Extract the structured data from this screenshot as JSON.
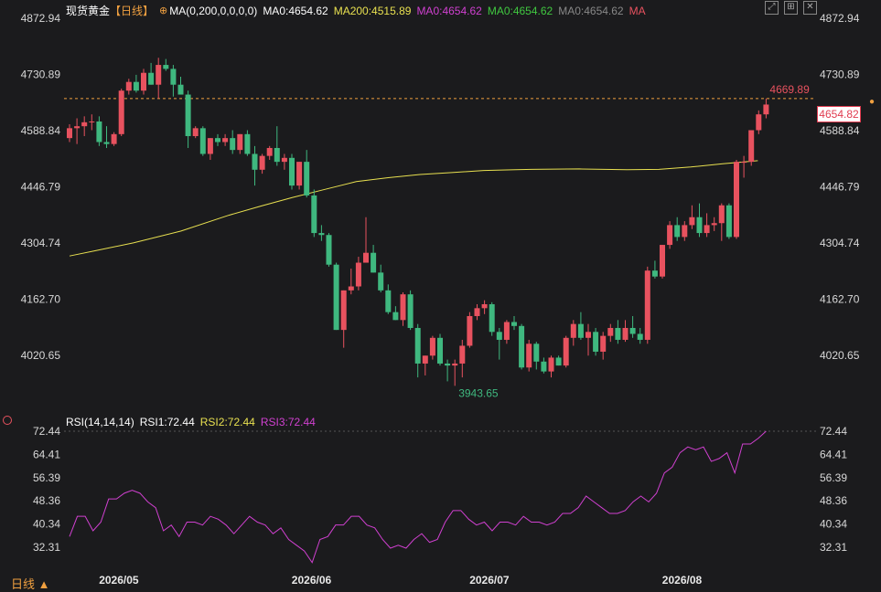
{
  "header": {
    "symbol": "现货黄金",
    "period_tag": "【日线】",
    "ma_params": "MA(0,200,0,0,0,0)",
    "ma0_a": "MA0:4654.62",
    "ma200": "MA200:4515.89",
    "ma0_b": "MA0:4654.62",
    "ma0_c": "MA0:4654.62",
    "ma0_d": "MA0:4654.62",
    "ma_label": "MA"
  },
  "rsi_header": {
    "params": "RSI(14,14,14)",
    "rsi1": "RSI1:72.44",
    "rsi2": "RSI2:72.44",
    "rsi3": "RSI3:72.44"
  },
  "period_button": "日线 ▲",
  "current_price_tag": "4654.82",
  "colors": {
    "background": "#1b1b1d",
    "up": "#e8525f",
    "down": "#3fb87f",
    "ma200": "#e8e050",
    "rsi": "#d040d0",
    "rsi2_text": "#e8e050",
    "rsi3_text": "#d040d0",
    "high_label": "#e8525f",
    "low_label": "#3fb87f"
  },
  "chart_data": [
    {
      "type": "candlestick",
      "title": "现货黄金",
      "y_ticks": [
        "4872.94",
        "4730.89",
        "4588.84",
        "4446.79",
        "4304.74",
        "4162.70",
        "4020.65"
      ],
      "x_ticks": [
        "2026/05",
        "2026/06",
        "2026/07",
        "2026/08"
      ],
      "ylim": [
        3900,
        4900
      ],
      "annotations": {
        "high": "4773.37",
        "low": "3943.65",
        "last_high": "4669.89"
      },
      "candles": [
        [
          4570,
          4605,
          4560,
          4595
        ],
        [
          4595,
          4620,
          4555,
          4600
        ],
        [
          4600,
          4625,
          4575,
          4610
        ],
        [
          4610,
          4630,
          4590,
          4612
        ],
        [
          4612,
          4625,
          4550,
          4560
        ],
        [
          4560,
          4600,
          4545,
          4555
        ],
        [
          4555,
          4585,
          4550,
          4580
        ],
        [
          4580,
          4695,
          4575,
          4690
        ],
        [
          4690,
          4720,
          4680,
          4712
        ],
        [
          4712,
          4730,
          4685,
          4690
        ],
        [
          4690,
          4745,
          4680,
          4735
        ],
        [
          4735,
          4760,
          4705,
          4705
        ],
        [
          4705,
          4773,
          4670,
          4755
        ],
        [
          4755,
          4770,
          4740,
          4745
        ],
        [
          4745,
          4755,
          4675,
          4705
        ],
        [
          4705,
          4725,
          4680,
          4680
        ],
        [
          4680,
          4690,
          4545,
          4575
        ],
        [
          4575,
          4600,
          4570,
          4595
        ],
        [
          4595,
          4600,
          4525,
          4530
        ],
        [
          4530,
          4570,
          4515,
          4570
        ],
        [
          4570,
          4580,
          4550,
          4560
        ],
        [
          4560,
          4580,
          4550,
          4570
        ],
        [
          4570,
          4590,
          4530,
          4540
        ],
        [
          4540,
          4580,
          4530,
          4580
        ],
        [
          4580,
          4590,
          4525,
          4530
        ],
        [
          4530,
          4550,
          4450,
          4490
        ],
        [
          4490,
          4530,
          4480,
          4525
        ],
        [
          4525,
          4550,
          4515,
          4545
        ],
        [
          4545,
          4600,
          4500,
          4510
        ],
        [
          4510,
          4530,
          4490,
          4520
        ],
        [
          4520,
          4530,
          4440,
          4450
        ],
        [
          4450,
          4510,
          4440,
          4510
        ],
        [
          4510,
          4540,
          4420,
          4425
        ],
        [
          4425,
          4440,
          4320,
          4330
        ],
        [
          4330,
          4350,
          4310,
          4325
        ],
        [
          4325,
          4330,
          4245,
          4250
        ],
        [
          4250,
          4255,
          4085,
          4085
        ],
        [
          4085,
          4185,
          4040,
          4185
        ],
        [
          4185,
          4240,
          4175,
          4195
        ],
        [
          4195,
          4270,
          4185,
          4255
        ],
        [
          4255,
          4370,
          4255,
          4280
        ],
        [
          4280,
          4300,
          4230,
          4230
        ],
        [
          4230,
          4250,
          4180,
          4185
        ],
        [
          4185,
          4200,
          4125,
          4130
        ],
        [
          4130,
          4145,
          4110,
          4110
        ],
        [
          4110,
          4180,
          4095,
          4175
        ],
        [
          4175,
          4185,
          4085,
          4090
        ],
        [
          4090,
          4100,
          3965,
          4000
        ],
        [
          4000,
          4020,
          3970,
          4020
        ],
        [
          4020,
          4070,
          4010,
          4065
        ],
        [
          4065,
          4075,
          3995,
          4000
        ],
        [
          4000,
          4010,
          3955,
          3995
        ],
        [
          3995,
          4010,
          3943.65,
          4000
        ],
        [
          4000,
          4060,
          3965,
          4045
        ],
        [
          4045,
          4130,
          4040,
          4120
        ],
        [
          4120,
          4150,
          4110,
          4140
        ],
        [
          4140,
          4160,
          4125,
          4150
        ],
        [
          4150,
          4155,
          4070,
          4080
        ],
        [
          4080,
          4090,
          4010,
          4060
        ],
        [
          4060,
          4110,
          4050,
          4105
        ],
        [
          4105,
          4120,
          4085,
          4095
        ],
        [
          4095,
          4100,
          3985,
          3990
        ],
        [
          3990,
          4060,
          3980,
          4050
        ],
        [
          4050,
          4055,
          3985,
          4005
        ],
        [
          4005,
          4015,
          3975,
          3980
        ],
        [
          3980,
          4020,
          3965,
          4015
        ],
        [
          4015,
          4020,
          3995,
          3995
        ],
        [
          3995,
          4070,
          3990,
          4065
        ],
        [
          4065,
          4110,
          4045,
          4100
        ],
        [
          4100,
          4130,
          4060,
          4065
        ],
        [
          4065,
          4100,
          4020,
          4080
        ],
        [
          4080,
          4090,
          4020,
          4030
        ],
        [
          4030,
          4080,
          4010,
          4070
        ],
        [
          4070,
          4100,
          4055,
          4090
        ],
        [
          4090,
          4110,
          4050,
          4060
        ],
        [
          4060,
          4110,
          4055,
          4090
        ],
        [
          4090,
          4120,
          4065,
          4075
        ],
        [
          4075,
          4090,
          4050,
          4060
        ],
        [
          4060,
          4245,
          4050,
          4235
        ],
        [
          4235,
          4260,
          4215,
          4220
        ],
        [
          4220,
          4300,
          4215,
          4300
        ],
        [
          4300,
          4360,
          4290,
          4350
        ],
        [
          4350,
          4370,
          4310,
          4320
        ],
        [
          4320,
          4360,
          4310,
          4350
        ],
        [
          4350,
          4400,
          4340,
          4370
        ],
        [
          4370,
          4405,
          4320,
          4330
        ],
        [
          4330,
          4380,
          4320,
          4350
        ],
        [
          4350,
          4370,
          4335,
          4355
        ],
        [
          4355,
          4405,
          4310,
          4400
        ],
        [
          4400,
          4405,
          4315,
          4320
        ],
        [
          4320,
          4515,
          4315,
          4510
        ],
        [
          4510,
          4525,
          4470,
          4510
        ],
        [
          4510,
          4590,
          4500,
          4590
        ],
        [
          4590,
          4640,
          4580,
          4630
        ],
        [
          4630,
          4669.89,
          4620,
          4654.82
        ]
      ],
      "ma200": [
        [
          0,
          4272
        ],
        [
          8,
          4285
        ],
        [
          20,
          4305
        ],
        [
          35,
          4335
        ],
        [
          50,
          4375
        ],
        [
          60,
          4398
        ],
        [
          70,
          4420
        ],
        [
          80,
          4440
        ],
        [
          90,
          4460
        ],
        [
          100,
          4470
        ],
        [
          110,
          4478
        ],
        [
          120,
          4483
        ],
        [
          130,
          4488
        ],
        [
          140,
          4490
        ],
        [
          145,
          4491
        ],
        [
          160,
          4492
        ],
        [
          175,
          4490
        ],
        [
          185,
          4491
        ],
        [
          195,
          4497
        ],
        [
          205,
          4505
        ],
        [
          212,
          4510
        ],
        [
          216,
          4513
        ]
      ]
    },
    {
      "type": "line",
      "title": "RSI(14,14,14)",
      "y_ticks": [
        "72.44",
        "64.41",
        "56.39",
        "48.36",
        "40.34",
        "32.31"
      ],
      "ylim": [
        26,
        74
      ],
      "values": [
        36,
        43,
        43,
        38,
        41,
        49,
        49,
        51,
        52,
        51,
        48,
        46,
        38,
        40,
        36,
        41,
        41,
        40,
        43,
        42,
        40,
        37,
        40,
        43,
        41,
        40,
        37,
        39,
        35,
        33,
        31,
        27,
        35,
        36,
        40,
        40,
        43,
        43,
        40,
        39,
        35,
        32,
        33,
        32,
        35,
        37,
        34,
        35,
        41,
        45,
        45,
        42,
        40,
        41,
        38,
        41,
        41,
        40,
        43,
        41,
        41,
        40,
        41,
        44,
        44,
        46,
        50,
        48,
        46,
        44,
        44,
        45,
        48,
        50,
        48,
        51,
        58,
        60,
        65,
        67,
        66,
        67,
        62,
        63,
        65,
        58,
        68,
        68,
        70,
        72.44
      ]
    }
  ]
}
